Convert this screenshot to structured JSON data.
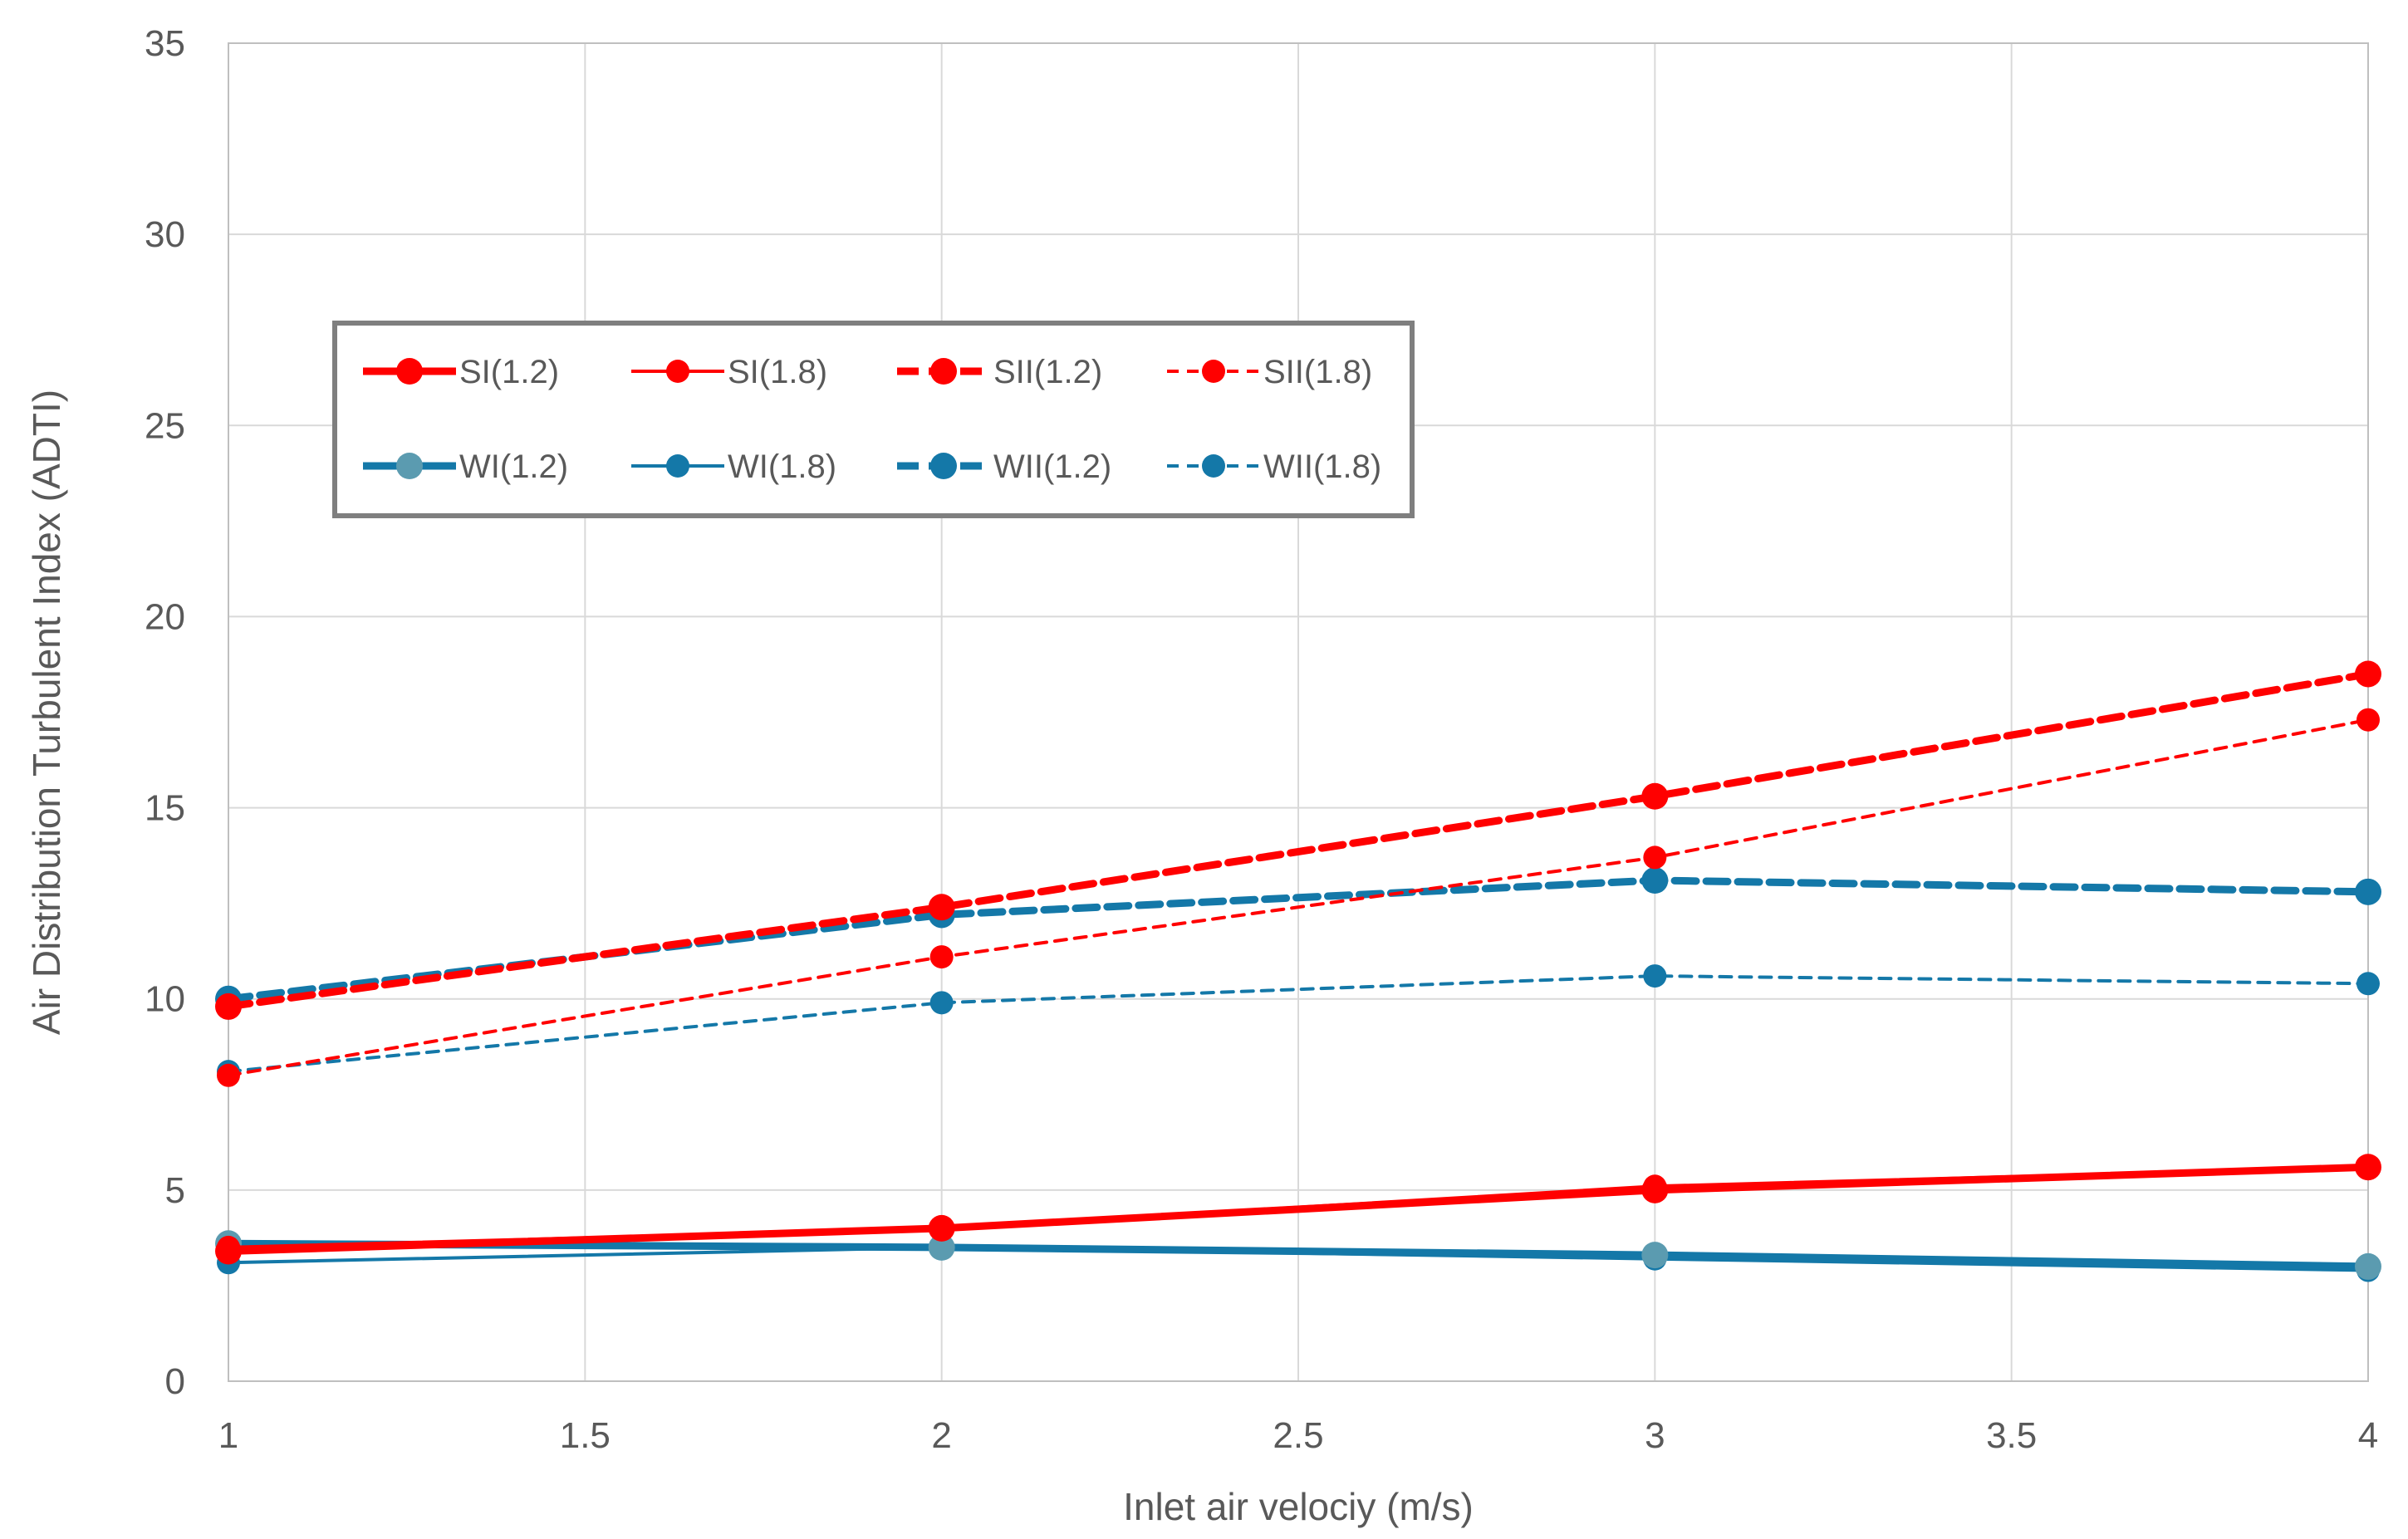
{
  "chart_data": {
    "type": "line",
    "title": "",
    "xlabel": "Inlet air velociy (m/s)",
    "ylabel": "Air Distribution Turbulent Index (ADTI)",
    "xlim": [
      1,
      4
    ],
    "ylim": [
      0,
      35
    ],
    "xticks": [
      "1",
      "1.5",
      "2",
      "2.5",
      "3",
      "3.5",
      "4"
    ],
    "xtick_values": [
      1,
      1.5,
      2,
      2.5,
      3,
      3.5,
      4
    ],
    "yticks": [
      "0",
      "5",
      "10",
      "15",
      "20",
      "25",
      "30",
      "35"
    ],
    "ytick_values": [
      0,
      5,
      10,
      15,
      20,
      25,
      30,
      35
    ],
    "grid": true,
    "legend_position": "upper-left",
    "x": [
      1,
      2,
      3,
      4
    ],
    "series": [
      {
        "name": "SI(1.2)",
        "values": [
          3.4,
          4.0,
          5.0,
          5.6
        ],
        "color": "#ff0000",
        "style": "solid-thick"
      },
      {
        "name": "SI(1.8)",
        "values": [
          3.5,
          4.0,
          5.1,
          5.6
        ],
        "color": "#ff0000",
        "style": "solid"
      },
      {
        "name": "SII(1.2)",
        "values": [
          9.8,
          12.4,
          15.3,
          18.5
        ],
        "color": "#ff0000",
        "style": "dashed-thick"
      },
      {
        "name": "SII(1.8)",
        "values": [
          8.0,
          11.1,
          13.7,
          17.3
        ],
        "color": "#ff0000",
        "style": "dashed"
      },
      {
        "name": "WI(1.2)",
        "values": [
          3.6,
          3.5,
          3.3,
          3.0
        ],
        "color": "#1478a8",
        "style": "solid-thick",
        "marker_color": "#5b9bb0"
      },
      {
        "name": "WI(1.8)",
        "values": [
          3.1,
          3.5,
          3.2,
          2.9
        ],
        "color": "#1478a8",
        "style": "solid"
      },
      {
        "name": "WII(1.2)",
        "values": [
          10.0,
          12.2,
          13.1,
          12.8
        ],
        "color": "#1478a8",
        "style": "dashed-thick"
      },
      {
        "name": "WII(1.8)",
        "values": [
          8.1,
          9.9,
          10.6,
          10.4
        ],
        "color": "#1478a8",
        "style": "dashed"
      }
    ]
  }
}
